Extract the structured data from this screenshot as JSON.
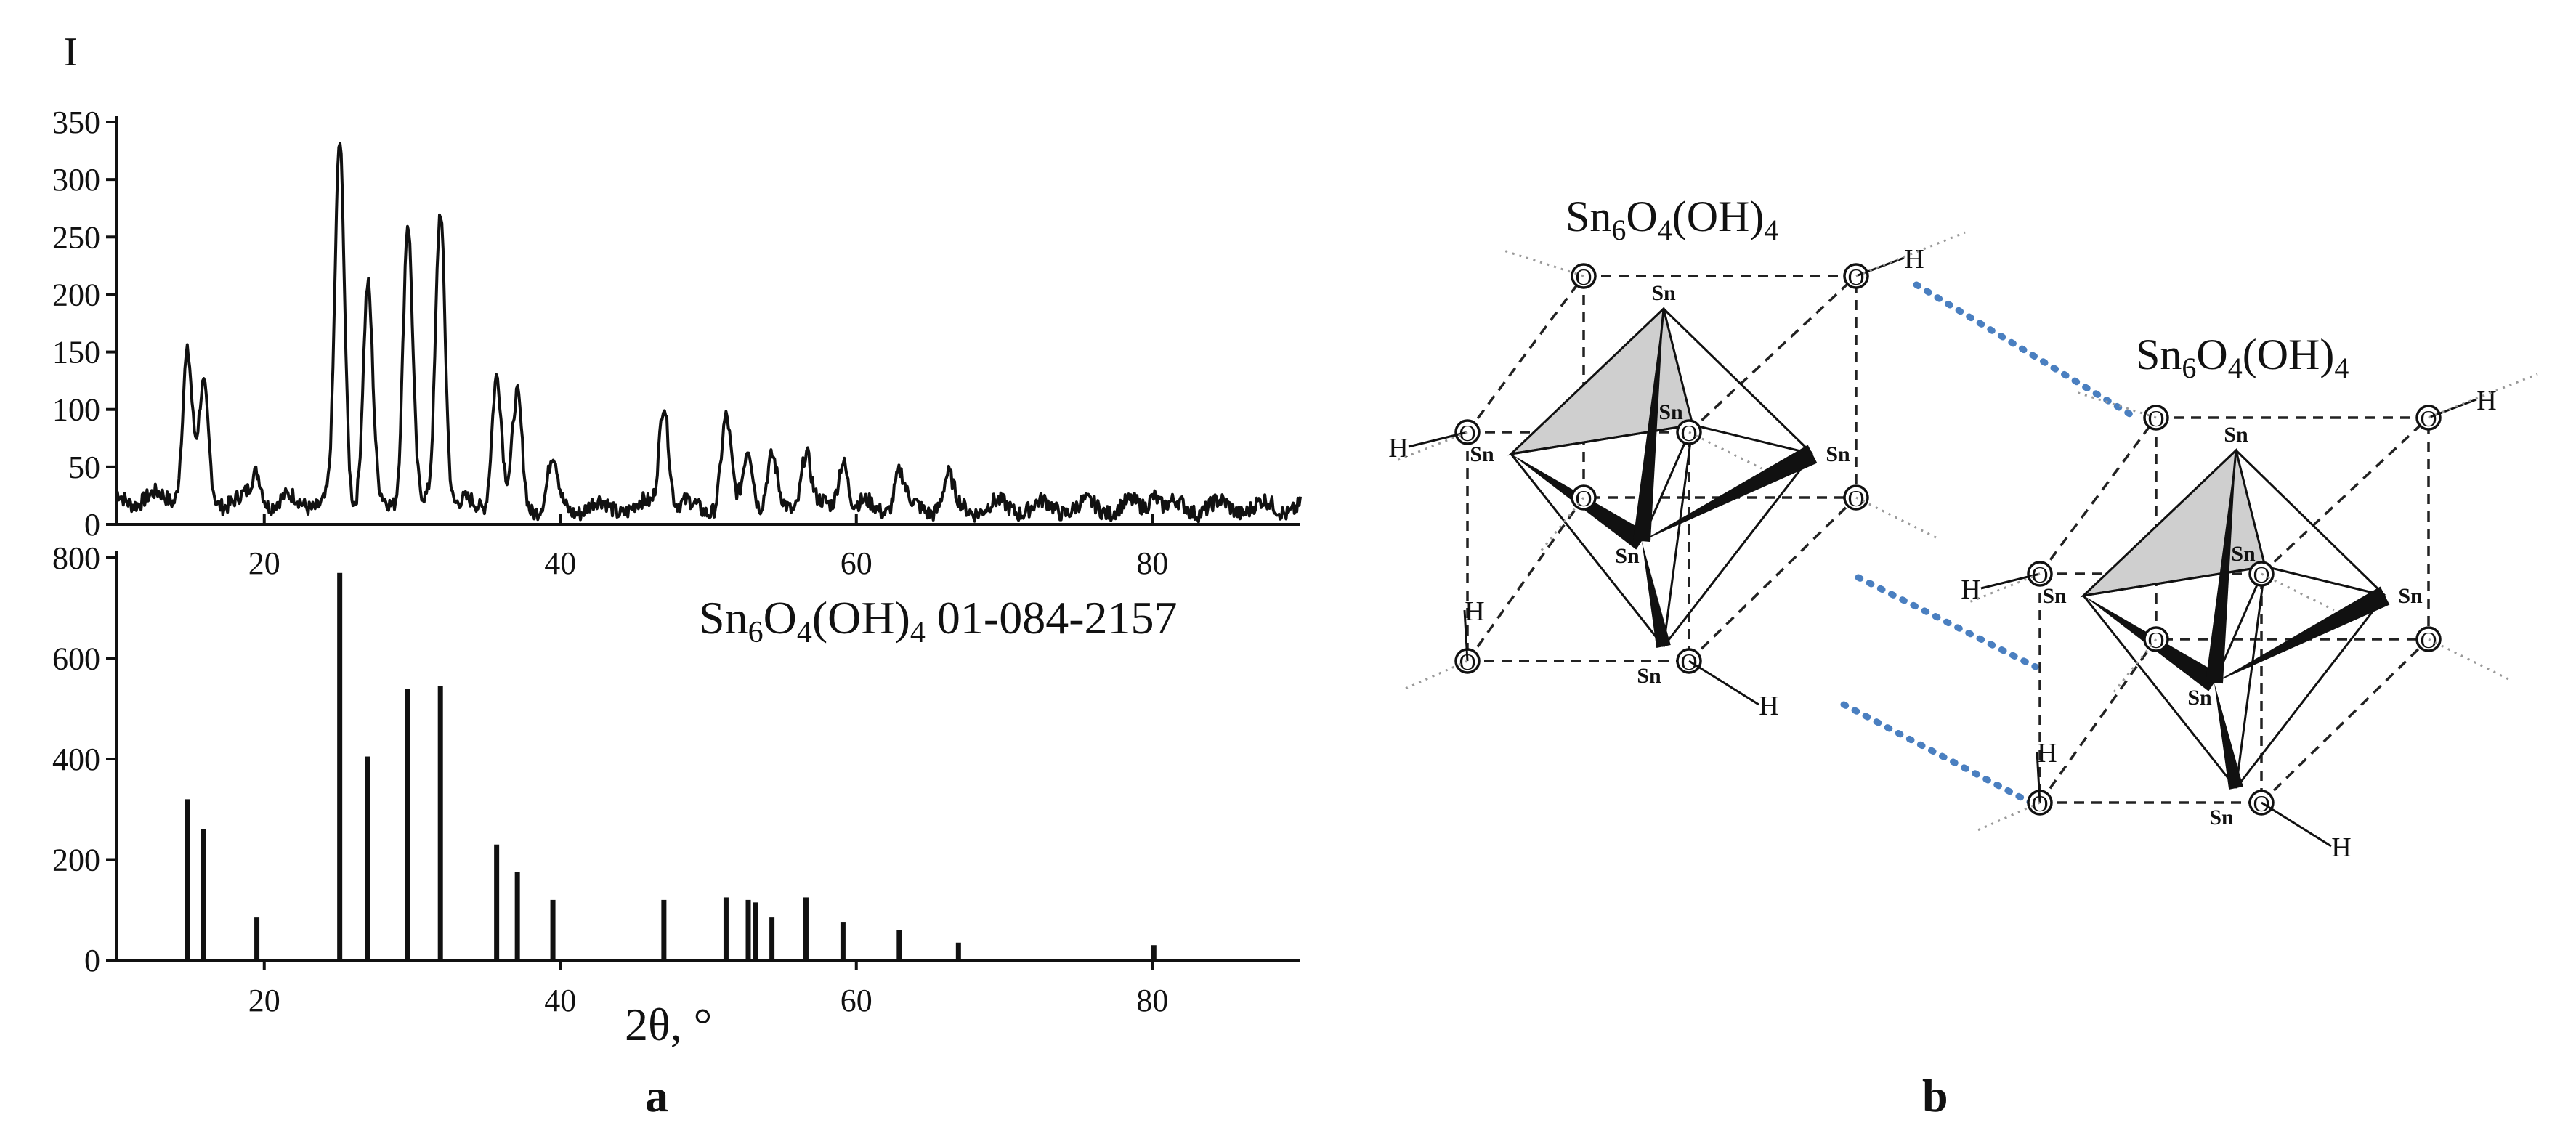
{
  "panels": {
    "a_label": "a",
    "b_label": "b"
  },
  "chart_data": [
    {
      "type": "line",
      "ylabel": "I",
      "xlim": [
        10,
        90
      ],
      "ylim": [
        0,
        350
      ],
      "x_ticks": [
        20,
        40,
        60,
        80
      ],
      "y_ticks": [
        0,
        50,
        100,
        150,
        200,
        250,
        300,
        350
      ],
      "peaks": [
        {
          "x": 14.8,
          "y": 145
        },
        {
          "x": 15.9,
          "y": 110
        },
        {
          "x": 19.5,
          "y": 40
        },
        {
          "x": 25.1,
          "y": 325
        },
        {
          "x": 27.0,
          "y": 205
        },
        {
          "x": 29.7,
          "y": 262
        },
        {
          "x": 31.9,
          "y": 275
        },
        {
          "x": 35.7,
          "y": 130
        },
        {
          "x": 37.1,
          "y": 110
        },
        {
          "x": 39.5,
          "y": 55
        },
        {
          "x": 47.0,
          "y": 110
        },
        {
          "x": 51.2,
          "y": 90
        },
        {
          "x": 52.7,
          "y": 70
        },
        {
          "x": 54.3,
          "y": 55
        },
        {
          "x": 56.6,
          "y": 65
        },
        {
          "x": 59.1,
          "y": 60
        },
        {
          "x": 62.9,
          "y": 45
        },
        {
          "x": 66.2,
          "y": 40
        },
        {
          "x": 80.1,
          "y": 30
        }
      ],
      "baseline": 15
    },
    {
      "type": "bar",
      "title": "Sn6O4(OH)4 01-084-2157",
      "xlabel": "2θ, °",
      "xlim": [
        10,
        90
      ],
      "ylim": [
        0,
        800
      ],
      "x_ticks": [
        20,
        40,
        60,
        80
      ],
      "y_ticks": [
        0,
        200,
        400,
        600,
        800
      ],
      "x": [
        14.8,
        15.9,
        19.5,
        25.1,
        27.0,
        29.7,
        31.9,
        35.7,
        37.1,
        39.5,
        47.0,
        51.2,
        52.7,
        53.2,
        54.3,
        56.6,
        59.1,
        62.9,
        66.9,
        80.1
      ],
      "values": [
        320,
        260,
        85,
        770,
        405,
        540,
        545,
        230,
        175,
        120,
        120,
        125,
        120,
        115,
        85,
        125,
        75,
        60,
        35,
        30
      ]
    }
  ],
  "diagram": {
    "formula_parts": [
      "Sn",
      "6",
      "O",
      "4",
      "(OH)",
      "4"
    ],
    "title_prefix_parts": [
      "Sn",
      "6",
      "O",
      "4",
      "(OH)",
      "4"
    ],
    "title_suffix": " 01-084-2157",
    "atom_sn": "Sn",
    "atom_o": "O",
    "atom_h": "H"
  }
}
